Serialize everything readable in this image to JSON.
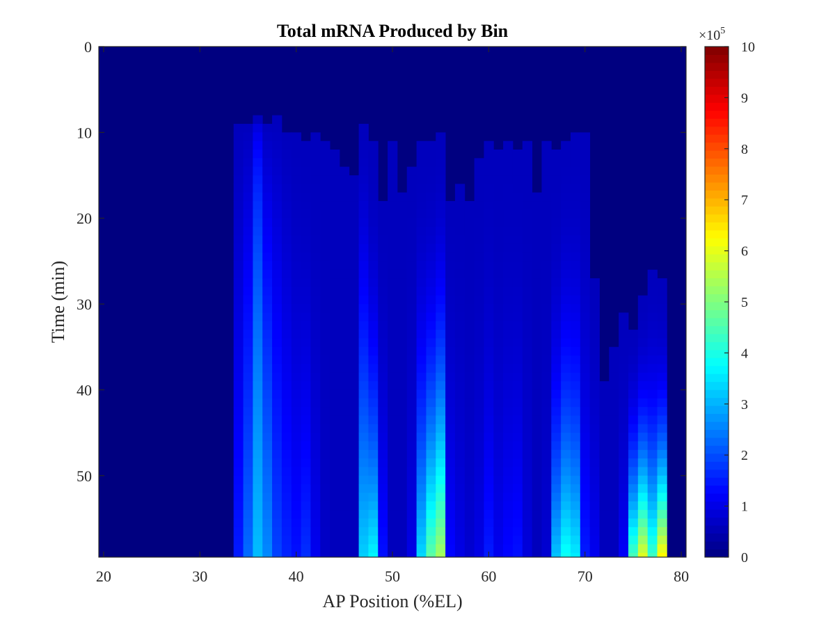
{
  "chart_data": {
    "type": "heatmap",
    "title": "Total mRNA Produced by Bin",
    "xlabel": "AP Position (%EL)",
    "ylabel": "Time (min)",
    "xlim": [
      19.5,
      80.5
    ],
    "ylim": [
      0,
      59.5
    ],
    "y_reversed": true,
    "x_ticks": [
      "20",
      "30",
      "40",
      "50",
      "60",
      "70",
      "80"
    ],
    "y_ticks": [
      "0",
      "10",
      "20",
      "30",
      "40",
      "50"
    ],
    "colormap": "jet",
    "colorbar": {
      "range": [
        0,
        1000000
      ],
      "exponent_label": "×10",
      "exponent_power": "5",
      "ticks": [
        "0",
        "1",
        "2",
        "3",
        "4",
        "5",
        "6",
        "7",
        "8",
        "9",
        "10"
      ]
    },
    "x_bin_width": 1,
    "x_bin_centers": [
      34,
      35,
      36,
      37,
      38,
      39,
      40,
      41,
      42,
      43,
      44,
      45,
      46,
      47,
      48,
      49,
      50,
      51,
      52,
      53,
      54,
      55,
      56,
      57,
      58,
      59,
      60,
      61,
      62,
      63,
      64,
      65,
      66,
      67,
      68,
      69,
      70,
      71,
      72,
      73,
      74,
      75,
      76,
      77,
      78
    ],
    "bin_onset_min": [
      9.5,
      9,
      8.5,
      9,
      8.5,
      10,
      10.5,
      11,
      10,
      11,
      12,
      14,
      15,
      9.5,
      11,
      18,
      11,
      17,
      14,
      11,
      11,
      10.5,
      18,
      16,
      18,
      13,
      11,
      12.5,
      11,
      12,
      11,
      17,
      11.5,
      12.5,
      11,
      10.5,
      10.5,
      27,
      39,
      35,
      31,
      33,
      29,
      26,
      27
    ],
    "bin_final_value_x1e5": [
      1.5,
      2.3,
      3.1,
      2.6,
      1.9,
      1.6,
      1.4,
      1.7,
      1.1,
      0.7,
      0.5,
      0.4,
      0.6,
      3.3,
      3.7,
      1.4,
      0.3,
      0.5,
      1.0,
      3.4,
      4.7,
      5.4,
      1.3,
      1.0,
      0.8,
      1.0,
      1.5,
      1.1,
      1.3,
      1.4,
      0.9,
      0.5,
      0.8,
      3.2,
      3.9,
      3.6,
      1.5,
      1.1,
      0.4,
      0.6,
      1.2,
      4.5,
      6.0,
      4.4,
      6.4
    ],
    "bin_curve_exponent": [
      1.2,
      1.0,
      0.5,
      0.9,
      1.0,
      1.2,
      1.5,
      1.8,
      2.0,
      2.0,
      1.5,
      1.5,
      1.8,
      1.5,
      2.2,
      2.0,
      1.5,
      2.0,
      2.0,
      2.2,
      2.2,
      2.0,
      1.8,
      2.0,
      2.0,
      2.0,
      2.0,
      2.0,
      2.0,
      2.0,
      2.0,
      1.5,
      2.5,
      2.5,
      2.2,
      2.2,
      2.0,
      1.6,
      1.0,
      1.4,
      2.0,
      2.0,
      2.2,
      2.2,
      2.4
    ]
  }
}
